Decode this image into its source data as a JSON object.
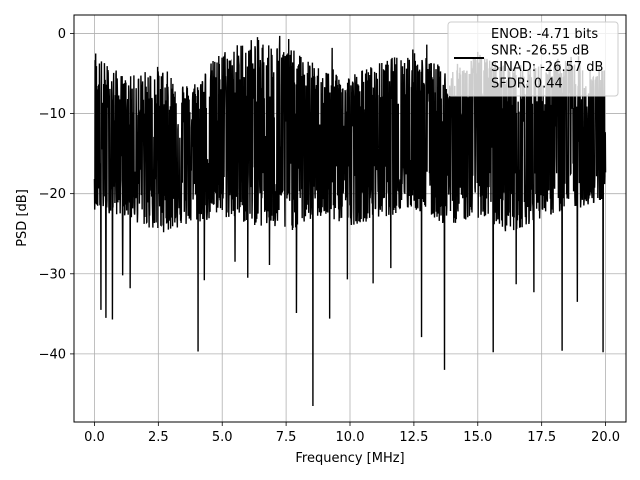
{
  "chart_data": {
    "type": "line",
    "title": "",
    "xlabel": "Frequency [MHz]",
    "ylabel": "PSD [dB]",
    "xlim": [
      -0.8,
      20.8
    ],
    "ylim": [
      -48.5,
      2.3
    ],
    "x_ticks": [
      0.0,
      2.5,
      5.0,
      7.5,
      10.0,
      12.5,
      15.0,
      17.5,
      20.0
    ],
    "x_tick_labels": [
      "0.0",
      "2.5",
      "5.0",
      "7.5",
      "10.0",
      "12.5",
      "15.0",
      "17.5",
      "20.0"
    ],
    "y_ticks": [
      0,
      -10,
      -20,
      -30,
      -40
    ],
    "y_tick_labels": [
      "0",
      "−10",
      "−20",
      "−30",
      "−40"
    ],
    "grid": true,
    "legend_position": "top-right",
    "series": [
      {
        "name": "ENOB: -4.71 bits\nSNR: -26.55 dB\nSINAD: -26.57 dB\nSFDR: 0.44",
        "color": "#000000",
        "x_range": [
          0.0,
          20.0
        ],
        "points": 2048,
        "band_upper": [
          -2.5,
          -5.5,
          -4.0,
          -6.5,
          -2.0,
          -0.3,
          -1.5,
          -4.0,
          -5.0,
          -3.5,
          -1.8,
          -4.5,
          -2.5,
          -4.0,
          -3.5,
          -2.5,
          -4.5
        ],
        "band_lower": [
          -22,
          -23,
          -25,
          -24,
          -23,
          -24,
          -25,
          -23,
          -24,
          -23,
          -22,
          -24,
          -23,
          -25,
          -23,
          -22,
          -21
        ],
        "band_mean": [
          -14,
          -14,
          -14.5,
          -14,
          -13.5,
          -13,
          -13.5,
          -14,
          -14,
          -13.5,
          -13.5,
          -14,
          -13.5,
          -14,
          -14,
          -14,
          -14
        ],
        "deep_dips": [
          [
            0.25,
            -34.5
          ],
          [
            0.45,
            -35.5
          ],
          [
            0.7,
            -35.7
          ],
          [
            1.1,
            -30.2
          ],
          [
            1.4,
            -31.8
          ],
          [
            4.05,
            -39.7
          ],
          [
            4.3,
            -30.8
          ],
          [
            5.5,
            -28.5
          ],
          [
            6.0,
            -30.5
          ],
          [
            6.85,
            -28.9
          ],
          [
            7.9,
            -34.9
          ],
          [
            8.55,
            -46.5
          ],
          [
            9.2,
            -35.6
          ],
          [
            9.9,
            -30.7
          ],
          [
            10.9,
            -31.2
          ],
          [
            11.6,
            -29.3
          ],
          [
            12.8,
            -37.9
          ],
          [
            13.7,
            -42.0
          ],
          [
            15.6,
            -39.8
          ],
          [
            16.5,
            -31.3
          ],
          [
            17.2,
            -32.3
          ],
          [
            18.3,
            -39.6
          ],
          [
            18.9,
            -33.5
          ],
          [
            19.9,
            -39.8
          ]
        ],
        "peaks": [
          [
            0.05,
            -2.5
          ],
          [
            7.25,
            -0.3
          ],
          [
            7.6,
            -0.7
          ],
          [
            9.3,
            -1.8
          ],
          [
            13.0,
            -1.4
          ],
          [
            15.0,
            -2.3
          ]
        ]
      }
    ]
  }
}
